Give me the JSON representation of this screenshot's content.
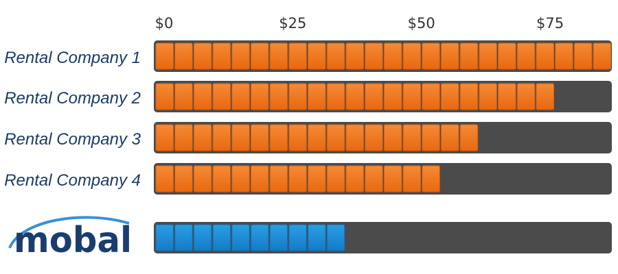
{
  "chart_data": {
    "type": "bar",
    "orientation": "horizontal",
    "categories": [
      "Rental Company 1",
      "Rental Company 2",
      "Rental Company 3",
      "Rental Company 4",
      "mobal"
    ],
    "values": [
      89,
      77,
      62,
      55,
      36
    ],
    "value_prefix": "$",
    "xlim": [
      0,
      89
    ],
    "xticks": [
      0,
      25,
      50,
      75
    ],
    "tick_labels": [
      "$0",
      "$25",
      "$50",
      "$75"
    ],
    "grid": false,
    "legend": "none",
    "colors": {
      "competitor": "#f07a21",
      "competitor_dark": "#d35f0e",
      "mobal": "#1f8fd8",
      "mobal_dark": "#0f6eb5",
      "track": "#4b4b4b"
    }
  },
  "logo": {
    "text": "mobal",
    "icon": "mobal-logo",
    "text_color": "#1b3d6e",
    "arc_color": "#3a8fd6"
  }
}
